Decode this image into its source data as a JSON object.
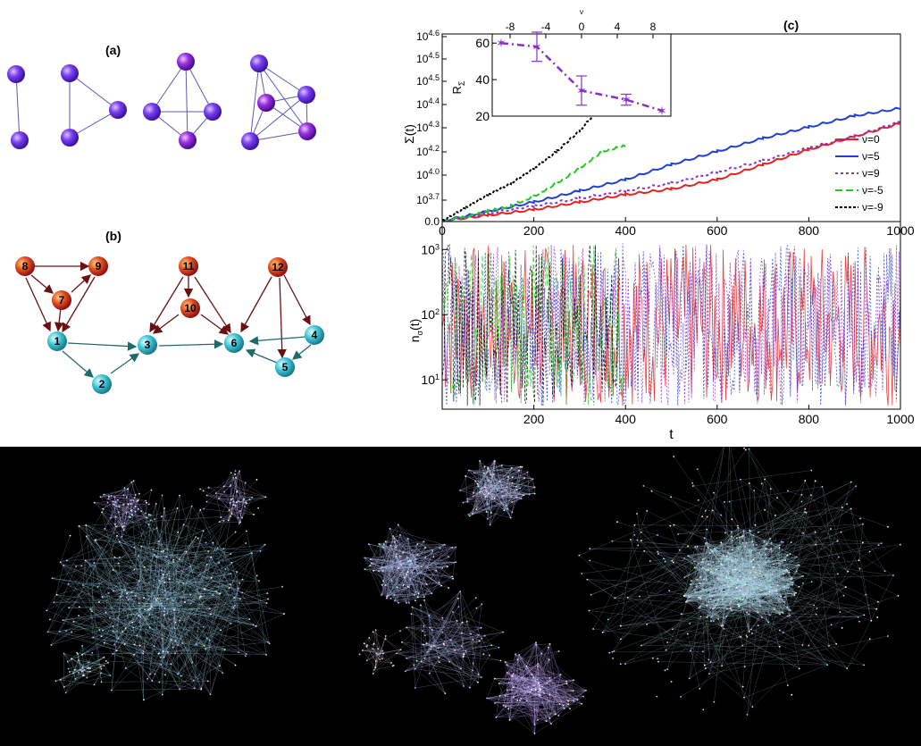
{
  "panels": {
    "a": {
      "label": "(a)"
    },
    "b": {
      "label": "(b)",
      "nodes_red": [
        "8",
        "9",
        "7",
        "11",
        "10",
        "12"
      ],
      "nodes_cyan": [
        "1",
        "3",
        "6",
        "4",
        "2",
        "5"
      ]
    },
    "c": {
      "label": "(c)"
    }
  },
  "colors": {
    "clique_node": "#7b3ff0",
    "red_node": "#d8401a",
    "cyan_node": "#3fc6d8",
    "red_edge": "#6b1010",
    "cyan_edge": "#1f6a6a"
  },
  "chart_data": [
    {
      "type": "line",
      "ylabel": "Σ(t)",
      "xlim": [
        0,
        1000
      ],
      "x_ticks": [
        "0",
        "200",
        "400",
        "600",
        "800",
        "1000"
      ],
      "y_ticks": [
        "0.0",
        "10^3.7",
        "10^4.0",
        "10^4.2",
        "10^4.3",
        "10^4.4",
        "10^4.5",
        "10^4.5",
        "10^4.6"
      ],
      "legend_position": "right",
      "series": [
        {
          "name": "ν=0",
          "color": "#e8221d",
          "x": [
            0,
            100,
            200,
            300,
            400,
            500,
            600,
            700,
            800,
            900,
            1000
          ],
          "y": [
            0,
            0.03,
            0.06,
            0.1,
            0.14,
            0.17,
            0.22,
            0.3,
            0.38,
            0.45,
            0.52
          ]
        },
        {
          "name": "ν=5",
          "color": "#1f3fd8",
          "x": [
            0,
            100,
            200,
            300,
            400,
            500,
            600,
            700,
            800,
            900,
            1000
          ],
          "y": [
            0,
            0.05,
            0.1,
            0.16,
            0.22,
            0.3,
            0.37,
            0.44,
            0.5,
            0.56,
            0.6
          ]
        },
        {
          "name": "ν=9",
          "color": "#8a30c8",
          "x": [
            0,
            100,
            200,
            300,
            400,
            500,
            600,
            700,
            800,
            900,
            1000
          ],
          "y": [
            0,
            0.04,
            0.08,
            0.12,
            0.16,
            0.2,
            0.26,
            0.32,
            0.39,
            0.45,
            0.53
          ]
        },
        {
          "name": "ν=-5",
          "color": "#22c822",
          "x": [
            0,
            50,
            100,
            150,
            200,
            250,
            300,
            350,
            400
          ],
          "y": [
            0,
            0.02,
            0.05,
            0.08,
            0.13,
            0.2,
            0.28,
            0.37,
            0.4
          ]
        },
        {
          "name": "ν=-9",
          "color": "#000000",
          "x": [
            0,
            50,
            100,
            150,
            200,
            250,
            300,
            350,
            390
          ],
          "y": [
            0,
            0.07,
            0.14,
            0.2,
            0.28,
            0.37,
            0.48,
            0.62,
            0.82
          ]
        }
      ]
    },
    {
      "type": "scatter",
      "ylabel": "R_Σ",
      "xlabel": "ν",
      "xlim": [
        -10,
        10
      ],
      "ylim": [
        20,
        65
      ],
      "x_ticks": [
        "-8",
        "-4",
        "0",
        "4",
        "8"
      ],
      "y_ticks": [
        "20",
        "40",
        "60"
      ],
      "points": [
        {
          "x": -9,
          "y": 60,
          "err": 0
        },
        {
          "x": -5,
          "y": 58,
          "err": 8
        },
        {
          "x": 0,
          "y": 34,
          "err": 8
        },
        {
          "x": 5,
          "y": 29,
          "err": 3
        },
        {
          "x": 9,
          "y": 23,
          "err": 0
        }
      ]
    },
    {
      "type": "line",
      "ylabel": "n_σ(t)",
      "xlabel": "t",
      "xlim": [
        0,
        1000
      ],
      "x_ticks": [
        "200",
        "400",
        "600",
        "800",
        "1000"
      ],
      "y_ticks": [
        "10^1",
        "10^2",
        "10^3"
      ],
      "y_scale": "log"
    }
  ]
}
